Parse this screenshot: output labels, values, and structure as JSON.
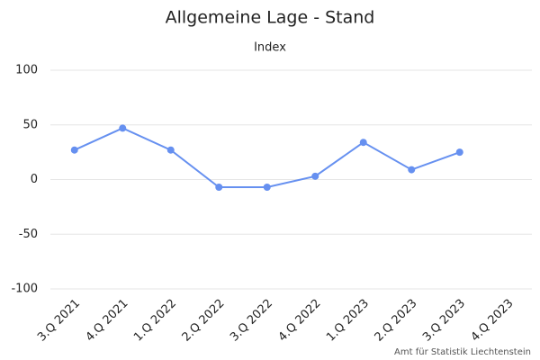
{
  "chart_data": {
    "type": "line",
    "title": "Allgemeine Lage - Stand",
    "y_label": "Index",
    "source": "Amt für Statistik Liechtenstein",
    "categories": [
      "3.Q 2021",
      "4.Q 2021",
      "1.Q 2022",
      "2.Q 2022",
      "3.Q 2022",
      "4.Q 2022",
      "1.Q 2023",
      "2.Q 2023",
      "3.Q 2023",
      "4.Q 2023"
    ],
    "series": [
      {
        "name": "Index",
        "color": "#6690f0",
        "values": [
          27,
          47,
          27,
          -7,
          -7,
          3,
          34,
          9,
          25,
          null
        ]
      }
    ],
    "ylim": [
      -100,
      100
    ],
    "yticks": [
      -100,
      -50,
      0,
      50,
      100
    ],
    "grid": true
  }
}
